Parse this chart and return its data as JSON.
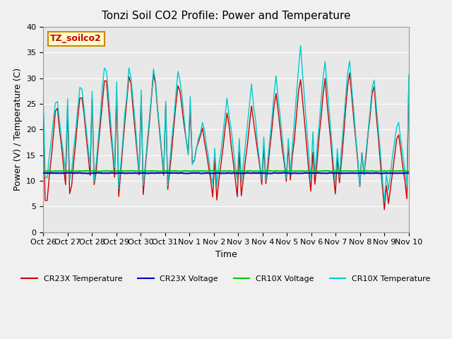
{
  "title": "Tonzi Soil CO2 Profile: Power and Temperature",
  "xlabel": "Time",
  "ylabel": "Power (V) / Temperature (C)",
  "ylim": [
    0,
    40
  ],
  "cr23x_voltage_value": 11.5,
  "cr10x_voltage_value": 11.9,
  "annotation_text": "TZ_soilco2",
  "annotation_bg": "#ffffcc",
  "annotation_border": "#cc8800",
  "tick_labels": [
    "Oct 26",
    "Oct 27",
    "Oct 28",
    "Oct 29",
    "Oct 30",
    "Oct 31",
    "Nov 1",
    "Nov 2",
    "Nov 3",
    "Nov 4",
    "Nov 5",
    "Nov 6",
    "Nov 7",
    "Nov 8",
    "Nov 9",
    "Nov 10"
  ],
  "legend_labels": [
    "CR23X Temperature",
    "CR23X Voltage",
    "CR10X Voltage",
    "CR10X Temperature"
  ],
  "cr23x_temp_color": "#cc0000",
  "cr10x_temp_color": "#00cccc",
  "cr23x_volt_color": "#0000cc",
  "cr10x_volt_color": "#00cc00",
  "cr23x_peaks": [
    25.5,
    28.5,
    31.5,
    32.0,
    31.8,
    29.5,
    20.5,
    23.5,
    24.8,
    27.2,
    30.5,
    30.5,
    32.0,
    29.5,
    20.0
  ],
  "cr23x_troughs": [
    2.5,
    6.0,
    8.2,
    7.5,
    7.5,
    7.8,
    13.0,
    5.5,
    5.8,
    8.0,
    8.5,
    6.8,
    6.5,
    8.5,
    3.5
  ],
  "cr10x_peaks": [
    27.0,
    30.2,
    33.8,
    33.5,
    32.5,
    32.5,
    21.5,
    26.0,
    28.5,
    30.5,
    36.5,
    34.0,
    34.5,
    31.0,
    22.5
  ],
  "cr10x_troughs": [
    8.0,
    8.5,
    9.0,
    8.5,
    8.5,
    8.5,
    12.5,
    8.5,
    8.5,
    8.5,
    9.0,
    8.5,
    8.0,
    8.5,
    6.0
  ],
  "n_days": 15
}
